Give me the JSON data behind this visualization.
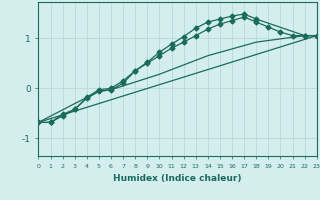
{
  "xlabel": "Humidex (Indice chaleur)",
  "background_color": "#d4eeee",
  "grid_color": "#b8d8d8",
  "line_color": "#1a6b5a",
  "x_min": 0,
  "x_max": 23,
  "y_min": -1.35,
  "y_max": 1.72,
  "yticks": [
    -1,
    0,
    1
  ],
  "xticks": [
    0,
    1,
    2,
    3,
    4,
    5,
    6,
    7,
    8,
    9,
    10,
    11,
    12,
    13,
    14,
    15,
    16,
    17,
    18,
    19,
    20,
    21,
    22,
    23
  ],
  "line1_x": [
    0,
    1,
    2,
    3,
    4,
    5,
    6,
    7,
    8,
    9,
    10,
    11,
    12,
    13,
    14,
    15,
    16,
    17,
    18,
    22,
    23
  ],
  "line1_y": [
    -0.68,
    -0.68,
    -0.52,
    -0.42,
    -0.2,
    -0.06,
    -0.03,
    0.1,
    0.35,
    0.52,
    0.72,
    0.88,
    1.03,
    1.2,
    1.32,
    1.38,
    1.44,
    1.48,
    1.38,
    1.05,
    1.05
  ],
  "line2_x": [
    0,
    1,
    2,
    3,
    4,
    5,
    6,
    7,
    8,
    9,
    10,
    11,
    12,
    13,
    14,
    15,
    16,
    17,
    18,
    19,
    20,
    21,
    22,
    23
  ],
  "line2_y": [
    -0.68,
    -0.68,
    -0.55,
    -0.42,
    -0.18,
    -0.03,
    0.0,
    0.15,
    0.35,
    0.5,
    0.65,
    0.8,
    0.92,
    1.05,
    1.18,
    1.28,
    1.35,
    1.42,
    1.32,
    1.22,
    1.12,
    1.05,
    1.05,
    1.05
  ],
  "line3_x": [
    0,
    23
  ],
  "line3_y": [
    -0.68,
    1.05
  ],
  "line4_x": [
    0,
    4,
    5,
    6,
    10,
    14,
    18,
    22,
    23
  ],
  "line4_y": [
    -0.68,
    -0.18,
    -0.06,
    -0.03,
    0.28,
    0.65,
    0.92,
    1.05,
    1.05
  ]
}
